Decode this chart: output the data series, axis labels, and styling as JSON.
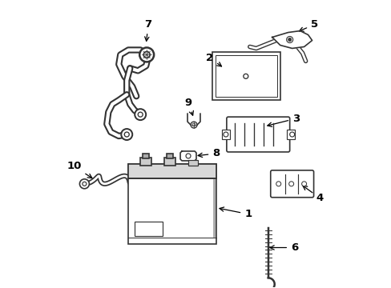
{
  "background_color": "#ffffff",
  "line_color": "#333333",
  "text_color": "#000000",
  "figure_width": 4.89,
  "figure_height": 3.6,
  "dpi": 100
}
